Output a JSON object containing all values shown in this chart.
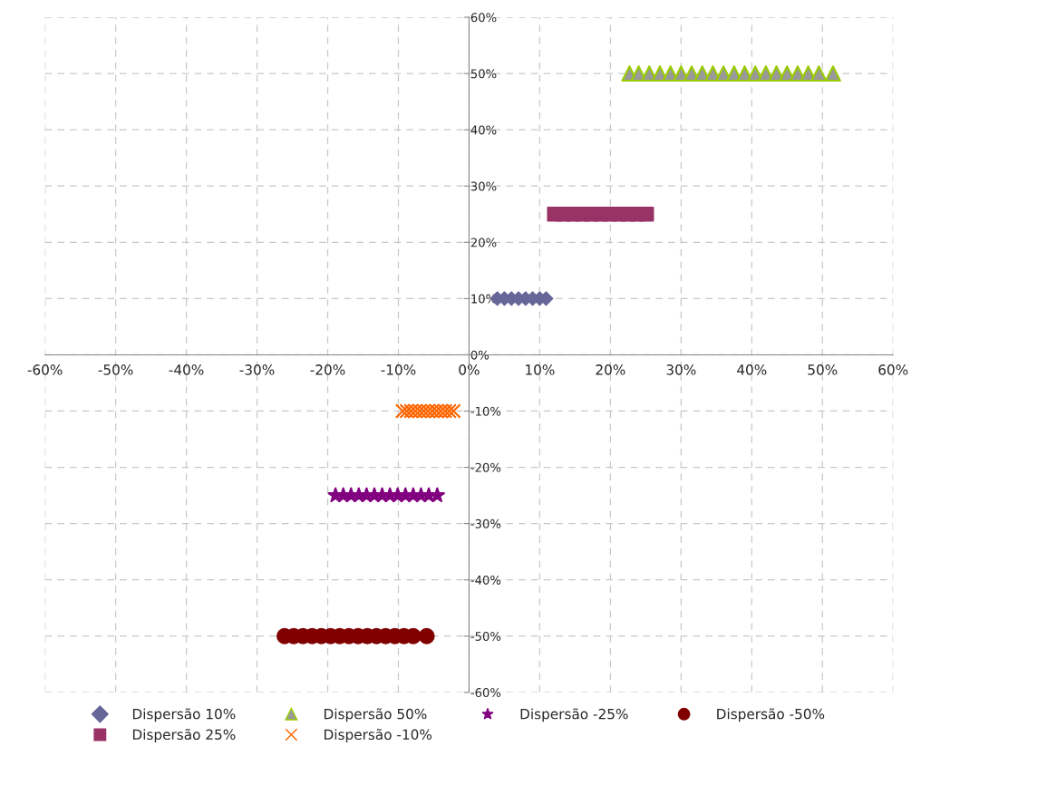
{
  "chart_data": {
    "type": "scatter",
    "xlim": [
      -60,
      60
    ],
    "ylim": [
      -60,
      60
    ],
    "xticks": [
      {
        "value": -60,
        "label": "-60%"
      },
      {
        "value": -50,
        "label": "-50%"
      },
      {
        "value": -40,
        "label": "-40%"
      },
      {
        "value": -30,
        "label": "-30%"
      },
      {
        "value": -20,
        "label": "-20%"
      },
      {
        "value": -10,
        "label": "-10%"
      },
      {
        "value": 0,
        "label": "0%"
      },
      {
        "value": 10,
        "label": "10%"
      },
      {
        "value": 20,
        "label": "20%"
      },
      {
        "value": 30,
        "label": "30%"
      },
      {
        "value": 40,
        "label": "40%"
      },
      {
        "value": 50,
        "label": "50%"
      },
      {
        "value": 60,
        "label": "60%"
      }
    ],
    "yticks": [
      {
        "value": -60,
        "label": "-60%"
      },
      {
        "value": -50,
        "label": "-50%"
      },
      {
        "value": -40,
        "label": "-40%"
      },
      {
        "value": -30,
        "label": "-30%"
      },
      {
        "value": -20,
        "label": "-20%"
      },
      {
        "value": -10,
        "label": "-10%"
      },
      {
        "value": 0,
        "label": "0%"
      },
      {
        "value": 10,
        "label": "10%"
      },
      {
        "value": 20,
        "label": "20%"
      },
      {
        "value": 30,
        "label": "30%"
      },
      {
        "value": 40,
        "label": "40%"
      },
      {
        "value": 50,
        "label": "50%"
      },
      {
        "value": 60,
        "label": "60%"
      }
    ],
    "grid": true,
    "legend": "bottom",
    "series": [
      {
        "name": "Dispersão 10%",
        "color": "#666699",
        "marker": "diamond",
        "x": [
          4.0,
          5.0,
          6.0,
          7.0,
          8.0,
          9.0,
          10.0,
          10.9
        ],
        "values": [
          10,
          10,
          10,
          10,
          10,
          10,
          10,
          10
        ]
      },
      {
        "name": "Dispersão 25%",
        "color": "#993366",
        "marker": "square",
        "x": [
          12.1,
          13.4,
          14.7,
          16.0,
          17.3,
          18.6,
          19.9,
          21.2,
          22.5,
          23.8,
          25.1
        ],
        "values": [
          25,
          25,
          25,
          25,
          25,
          25,
          25,
          25,
          25,
          25,
          25
        ]
      },
      {
        "name": "Dispersão 50%",
        "color": "#99cc00",
        "marker": "triangle",
        "x": [
          22.7,
          24.0,
          25.5,
          27.0,
          28.5,
          30.0,
          31.5,
          33.0,
          34.5,
          36.0,
          37.5,
          39.0,
          40.5,
          42.0,
          43.5,
          45.0,
          46.5,
          48.0,
          49.5,
          51.5
        ],
        "values": [
          50,
          50,
          50,
          50,
          50,
          50,
          50,
          50,
          50,
          50,
          50,
          50,
          50,
          50,
          50,
          50,
          50,
          50,
          50,
          50
        ]
      },
      {
        "name": "Dispersão -10%",
        "color": "#ff6600",
        "marker": "cross",
        "x": [
          -9.4,
          -8.8,
          -8.2,
          -7.6,
          -7.0,
          -6.4,
          -5.8,
          -5.2,
          -4.6,
          -4.0,
          -3.4,
          -2.8,
          -2.2
        ],
        "values": [
          -10,
          -10,
          -10,
          -10,
          -10,
          -10,
          -10,
          -10,
          -10,
          -10,
          -10,
          -10,
          -10
        ]
      },
      {
        "name": "Dispersão -25%",
        "color": "#800080",
        "marker": "star",
        "x": [
          -18.9,
          -17.8,
          -16.7,
          -15.6,
          -14.5,
          -13.4,
          -12.3,
          -11.2,
          -10.1,
          -9.0,
          -7.9,
          -6.8,
          -5.7,
          -4.5
        ],
        "values": [
          -25,
          -25,
          -25,
          -25,
          -25,
          -25,
          -25,
          -25,
          -25,
          -25,
          -25,
          -25,
          -25,
          -25
        ]
      },
      {
        "name": "Dispersão -50%",
        "color": "#800000",
        "marker": "circle",
        "x": [
          -26.1,
          -24.8,
          -23.5,
          -22.2,
          -20.9,
          -19.6,
          -18.3,
          -17.0,
          -15.7,
          -14.4,
          -13.1,
          -11.8,
          -10.5,
          -9.2,
          -7.9,
          -6.0
        ],
        "values": [
          -50,
          -50,
          -50,
          -50,
          -50,
          -50,
          -50,
          -50,
          -50,
          -50,
          -50,
          -50,
          -50,
          -50,
          -50,
          -50
        ]
      }
    ]
  }
}
